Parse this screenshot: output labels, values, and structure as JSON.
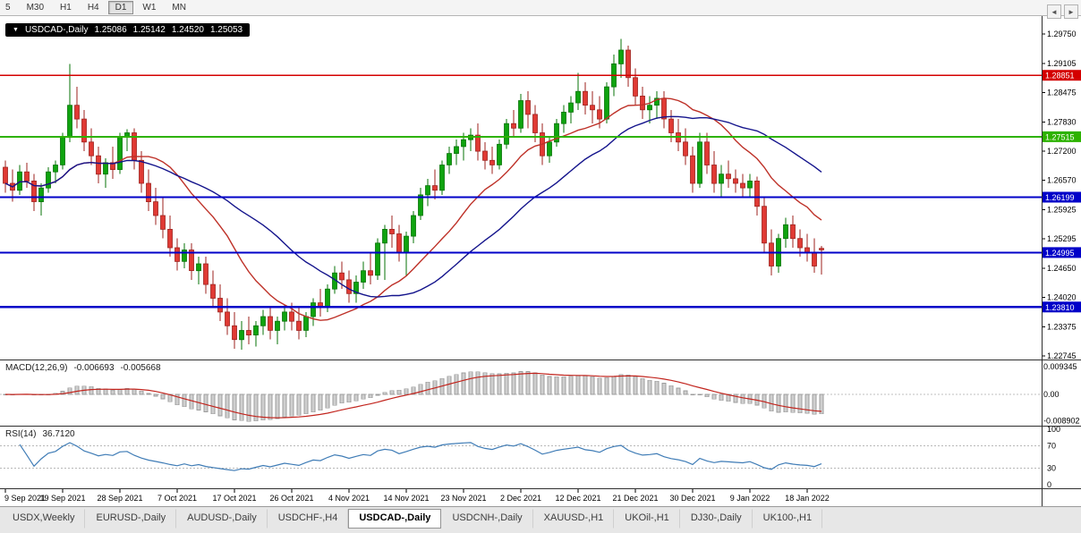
{
  "toolbar": {
    "timeframes": [
      {
        "label": "5",
        "active": false
      },
      {
        "label": "M30",
        "active": false
      },
      {
        "label": "H1",
        "active": false
      },
      {
        "label": "H4",
        "active": false
      },
      {
        "label": "D1",
        "active": true
      },
      {
        "label": "W1",
        "active": false
      },
      {
        "label": "MN",
        "active": false
      }
    ]
  },
  "symbol_info": {
    "dropdown_icon": "▼",
    "symbol": "USDCAD-,Daily",
    "open": "1.25086",
    "high": "1.25142",
    "low": "1.24520",
    "close": "1.25053"
  },
  "macd": {
    "title": "MACD(12,26,9)",
    "value_main": "-0.006693",
    "value_signal": "-0.005668",
    "axis_labels": [
      "0.009345",
      "0.00",
      "-0.008902"
    ],
    "params": {
      "fast": 12,
      "slow": 26,
      "signal": 9
    },
    "histogram_fill": "#CFCFCF",
    "histogram_stroke": "#9C9C9C",
    "signal_color": "#C2251E"
  },
  "rsi": {
    "title": "RSI(14)",
    "value": "36.7120",
    "period": 14,
    "axis_labels": [
      "100",
      "70",
      "30",
      "0"
    ],
    "levels": [
      70,
      30
    ],
    "line_color": "#3F7CB6",
    "level_color": "#B8B8B8"
  },
  "tab_scroll": {
    "left": "◄",
    "right": "►"
  },
  "tabs": {
    "items": [
      {
        "label": "USDX,Weekly",
        "active": false
      },
      {
        "label": "EURUSD-,Daily",
        "active": false
      },
      {
        "label": "AUDUSD-,Daily",
        "active": false
      },
      {
        "label": "USDCHF-,H4",
        "active": false
      },
      {
        "label": "USDCAD-,Daily",
        "active": true
      },
      {
        "label": "USDCNH-,Daily",
        "active": false
      },
      {
        "label": "XAUUSD-,H1",
        "active": false
      },
      {
        "label": "UKOil-,H1",
        "active": false
      },
      {
        "label": "DJ30-,Daily",
        "active": false
      },
      {
        "label": "UK100-,H1",
        "active": false
      }
    ]
  },
  "chart_data": {
    "type": "candlestick",
    "symbol": "USDCAD",
    "timeframe": "Daily",
    "price_axis_labels": [
      "1.29750",
      "1.29105",
      "1.28475",
      "1.27830",
      "1.27200",
      "1.26570",
      "1.25925",
      "1.25295",
      "1.24650",
      "1.24020",
      "1.23375",
      "1.22745"
    ],
    "hlines": [
      {
        "price": 1.28851,
        "label": "1.28851",
        "color": "#D40000",
        "width": 1.5
      },
      {
        "price": 1.27515,
        "label": "1.27515",
        "color": "#2DB200",
        "width": 2.2
      },
      {
        "price": 1.26199,
        "label": "1.26199",
        "color": "#0101C8",
        "width": 2.2
      },
      {
        "price": 1.24995,
        "label": "1.24995",
        "color": "#0101C8",
        "width": 2.2
      },
      {
        "price": 1.2381,
        "label": "1.23810",
        "color": "#0101C8",
        "width": 2.2
      }
    ],
    "moving_averages": [
      {
        "name": "fast-red",
        "period": 16,
        "color": "#BE3128"
      },
      {
        "name": "slow-blue",
        "period": 30,
        "color": "#14148C"
      }
    ],
    "colors": {
      "up": "#0FA30F",
      "up_stroke": "#077307",
      "down": "#E03A34",
      "down_stroke": "#9E221E",
      "background": "#FFFFFF",
      "axis_text": "#000000",
      "border": "#2F2F2F"
    },
    "date_labels": [
      {
        "i": 0,
        "label": "9 Sep 2021"
      },
      {
        "i": 8,
        "label": "19 Sep 2021"
      },
      {
        "i": 16,
        "label": "28 Sep 2021"
      },
      {
        "i": 24,
        "label": "7 Oct 2021"
      },
      {
        "i": 32,
        "label": "17 Oct 2021"
      },
      {
        "i": 40,
        "label": "26 Oct 2021"
      },
      {
        "i": 48,
        "label": "4 Nov 2021"
      },
      {
        "i": 56,
        "label": "14 Nov 2021"
      },
      {
        "i": 64,
        "label": "23 Nov 2021"
      },
      {
        "i": 72,
        "label": "2 Dec 2021"
      },
      {
        "i": 80,
        "label": "12 Dec 2021"
      },
      {
        "i": 88,
        "label": "21 Dec 2021"
      },
      {
        "i": 96,
        "label": "30 Dec 2021"
      },
      {
        "i": 104,
        "label": "9 Jan 2022"
      },
      {
        "i": 112,
        "label": "18 Jan 2022"
      }
    ],
    "candles": [
      [
        1.2685,
        1.27,
        1.263,
        1.265
      ],
      [
        1.265,
        1.268,
        1.261,
        1.2635
      ],
      [
        1.2635,
        1.269,
        1.2625,
        1.2675
      ],
      [
        1.2675,
        1.2695,
        1.264,
        1.2655
      ],
      [
        1.2655,
        1.267,
        1.259,
        1.261
      ],
      [
        1.261,
        1.265,
        1.258,
        1.264
      ],
      [
        1.264,
        1.2685,
        1.263,
        1.2675
      ],
      [
        1.2675,
        1.27,
        1.265,
        1.269
      ],
      [
        1.269,
        1.276,
        1.268,
        1.275
      ],
      [
        1.275,
        1.291,
        1.274,
        1.282
      ],
      [
        1.282,
        1.286,
        1.277,
        1.279
      ],
      [
        1.279,
        1.281,
        1.272,
        1.274
      ],
      [
        1.274,
        1.277,
        1.269,
        1.271
      ],
      [
        1.271,
        1.273,
        1.265,
        1.267
      ],
      [
        1.267,
        1.2705,
        1.264,
        1.2695
      ],
      [
        1.2695,
        1.273,
        1.266,
        1.268
      ],
      [
        1.268,
        1.276,
        1.267,
        1.275
      ],
      [
        1.275,
        1.2768,
        1.272,
        1.276
      ],
      [
        1.276,
        1.277,
        1.268,
        1.27
      ],
      [
        1.27,
        1.272,
        1.263,
        1.265
      ],
      [
        1.265,
        1.268,
        1.259,
        1.261
      ],
      [
        1.261,
        1.264,
        1.256,
        1.258
      ],
      [
        1.258,
        1.262,
        1.253,
        1.255
      ],
      [
        1.255,
        1.258,
        1.249,
        1.251
      ],
      [
        1.251,
        1.253,
        1.246,
        1.248
      ],
      [
        1.248,
        1.252,
        1.2465,
        1.2505
      ],
      [
        1.2505,
        1.252,
        1.244,
        1.246
      ],
      [
        1.246,
        1.249,
        1.243,
        1.2475
      ],
      [
        1.2475,
        1.249,
        1.241,
        1.243
      ],
      [
        1.243,
        1.246,
        1.238,
        1.24
      ],
      [
        1.24,
        1.243,
        1.235,
        1.237
      ],
      [
        1.237,
        1.24,
        1.232,
        1.234
      ],
      [
        1.234,
        1.237,
        1.229,
        1.231
      ],
      [
        1.231,
        1.235,
        1.2288,
        1.233
      ],
      [
        1.233,
        1.236,
        1.23,
        1.232
      ],
      [
        1.232,
        1.235,
        1.2295,
        1.234
      ],
      [
        1.234,
        1.2375,
        1.232,
        1.236
      ],
      [
        1.236,
        1.238,
        1.231,
        1.233
      ],
      [
        1.233,
        1.236,
        1.23,
        1.235
      ],
      [
        1.235,
        1.2385,
        1.233,
        1.237
      ],
      [
        1.237,
        1.239,
        1.233,
        1.235
      ],
      [
        1.235,
        1.238,
        1.231,
        1.233
      ],
      [
        1.233,
        1.237,
        1.2315,
        1.236
      ],
      [
        1.236,
        1.24,
        1.234,
        1.239
      ],
      [
        1.239,
        1.242,
        1.236,
        1.238
      ],
      [
        1.238,
        1.243,
        1.237,
        1.242
      ],
      [
        1.242,
        1.247,
        1.241,
        1.2455
      ],
      [
        1.2455,
        1.248,
        1.242,
        1.244
      ],
      [
        1.244,
        1.246,
        1.239,
        1.241
      ],
      [
        1.241,
        1.245,
        1.239,
        1.2435
      ],
      [
        1.2435,
        1.248,
        1.242,
        1.246
      ],
      [
        1.246,
        1.25,
        1.243,
        1.245
      ],
      [
        1.245,
        1.253,
        1.244,
        1.252
      ],
      [
        1.252,
        1.256,
        1.244,
        1.255
      ],
      [
        1.255,
        1.258,
        1.251,
        1.254
      ],
      [
        1.254,
        1.256,
        1.248,
        1.25
      ],
      [
        1.25,
        1.2545,
        1.245,
        1.2535
      ],
      [
        1.2535,
        1.259,
        1.252,
        1.258
      ],
      [
        1.258,
        1.264,
        1.257,
        1.2625
      ],
      [
        1.2625,
        1.266,
        1.26,
        1.2645
      ],
      [
        1.2645,
        1.268,
        1.2615,
        1.2635
      ],
      [
        1.2635,
        1.27,
        1.2625,
        1.269
      ],
      [
        1.269,
        1.273,
        1.267,
        1.2715
      ],
      [
        1.2715,
        1.2745,
        1.269,
        1.273
      ],
      [
        1.273,
        1.276,
        1.27,
        1.2745
      ],
      [
        1.2745,
        1.277,
        1.272,
        1.2755
      ],
      [
        1.2755,
        1.278,
        1.27,
        1.272
      ],
      [
        1.272,
        1.274,
        1.268,
        1.27
      ],
      [
        1.27,
        1.273,
        1.267,
        1.269
      ],
      [
        1.269,
        1.2745,
        1.268,
        1.2735
      ],
      [
        1.2735,
        1.279,
        1.2725,
        1.278
      ],
      [
        1.278,
        1.281,
        1.275,
        1.277
      ],
      [
        1.277,
        1.2845,
        1.276,
        1.283
      ],
      [
        1.283,
        1.285,
        1.277,
        1.28
      ],
      [
        1.28,
        1.282,
        1.274,
        1.276
      ],
      [
        1.276,
        1.278,
        1.269,
        1.271
      ],
      [
        1.271,
        1.275,
        1.2695,
        1.274
      ],
      [
        1.274,
        1.279,
        1.273,
        1.278
      ],
      [
        1.278,
        1.282,
        1.276,
        1.2805
      ],
      [
        1.2805,
        1.284,
        1.278,
        1.2825
      ],
      [
        1.2825,
        1.289,
        1.281,
        1.285
      ],
      [
        1.285,
        1.287,
        1.28,
        1.282
      ],
      [
        1.282,
        1.285,
        1.278,
        1.281
      ],
      [
        1.281,
        1.284,
        1.277,
        1.279
      ],
      [
        1.279,
        1.287,
        1.278,
        1.286
      ],
      [
        1.286,
        1.293,
        1.284,
        1.291
      ],
      [
        1.291,
        1.2964,
        1.288,
        1.294
      ],
      [
        1.294,
        1.295,
        1.286,
        1.288
      ],
      [
        1.288,
        1.29,
        1.282,
        1.284
      ],
      [
        1.284,
        1.286,
        1.279,
        1.281
      ],
      [
        1.281,
        1.284,
        1.278,
        1.282
      ],
      [
        1.282,
        1.285,
        1.279,
        1.2835
      ],
      [
        1.2835,
        1.285,
        1.277,
        1.279
      ],
      [
        1.279,
        1.281,
        1.274,
        1.276
      ],
      [
        1.276,
        1.279,
        1.272,
        1.274
      ],
      [
        1.274,
        1.277,
        1.269,
        1.271
      ],
      [
        1.271,
        1.273,
        1.263,
        1.265
      ],
      [
        1.265,
        1.276,
        1.264,
        1.274
      ],
      [
        1.274,
        1.276,
        1.267,
        1.269
      ],
      [
        1.269,
        1.272,
        1.263,
        1.265
      ],
      [
        1.265,
        1.269,
        1.262,
        1.267
      ],
      [
        1.267,
        1.27,
        1.264,
        1.266
      ],
      [
        1.266,
        1.268,
        1.263,
        1.265
      ],
      [
        1.265,
        1.267,
        1.262,
        1.264
      ],
      [
        1.264,
        1.267,
        1.262,
        1.2655
      ],
      [
        1.2655,
        1.2665,
        1.258,
        1.26
      ],
      [
        1.26,
        1.262,
        1.25,
        1.252
      ],
      [
        1.252,
        1.255,
        1.245,
        1.247
      ],
      [
        1.247,
        1.254,
        1.2455,
        1.253
      ],
      [
        1.253,
        1.2575,
        1.251,
        1.256
      ],
      [
        1.256,
        1.258,
        1.251,
        1.253
      ],
      [
        1.253,
        1.255,
        1.249,
        1.251
      ],
      [
        1.251,
        1.254,
        1.248,
        1.25
      ],
      [
        1.25,
        1.253,
        1.2455,
        1.247
      ],
      [
        1.25086,
        1.25142,
        1.2452,
        1.25053
      ]
    ]
  }
}
